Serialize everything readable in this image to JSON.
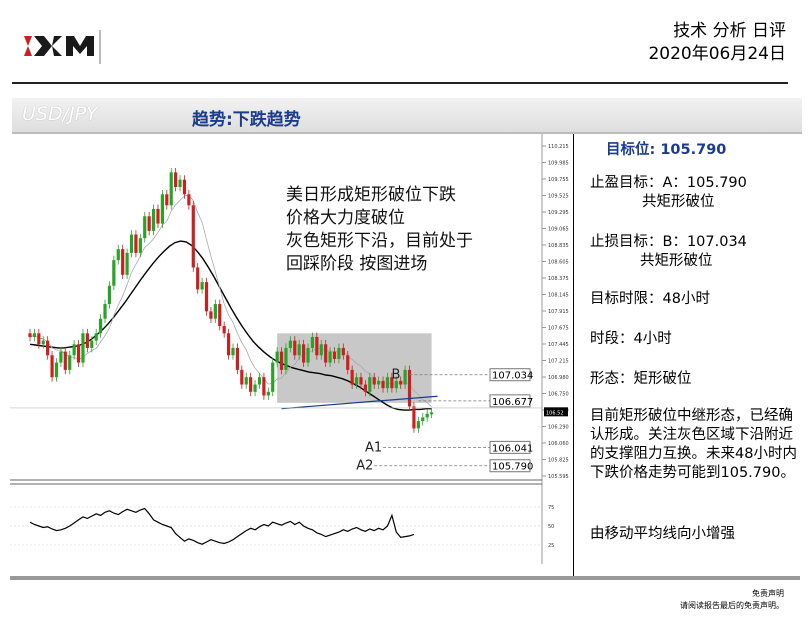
{
  "header": {
    "title": "技术 分析 日评",
    "date": "2020年06月24日"
  },
  "band": {
    "pair": "USD/JPY",
    "trend": "趋势:下跌趋势"
  },
  "colors": {
    "bull": "#27a327",
    "bear": "#cc2020",
    "brand_blue": "#1b3c8c",
    "rect": "#c8c8c8"
  },
  "sidebar": {
    "target": "目标位: 105.790",
    "tp_label": "止盈目标：A：105.790",
    "tp_sub": "共矩形破位",
    "sl_label": "止损目标：B：107.034",
    "sl_sub": "共矩形破位",
    "time_limit": "目标时限：48小时",
    "period": "时段：4小时",
    "pattern": "形态：矩形破位",
    "comment": "目前矩形破位中继形态，已经确认形成。关注灰色区域下沿附近的支撑阻力互换。未来48小时内下跌价格走势可能到105.790。",
    "note": "由移动平均线向小增强"
  },
  "chart_data": {
    "type": "candlestick",
    "annotation": [
      "美日形成矩形破位下跌",
      "价格大力度破位",
      "灰色矩形下沿，目前处于",
      "回踩阶段 按图进场"
    ],
    "y_ticks": [
      "110.215",
      "109.985",
      "109.755",
      "109.525",
      "109.295",
      "109.065",
      "108.835",
      "108.605",
      "108.375",
      "108.145",
      "107.915",
      "107.675",
      "107.445",
      "107.215",
      "106.980",
      "106.750",
      "106.520",
      "106.290",
      "106.060",
      "105.825",
      "105.595"
    ],
    "ylim": [
      105.595,
      110.215
    ],
    "levels": [
      {
        "label": "B",
        "price": 107.034,
        "tag": "107.034"
      },
      {
        "label": "",
        "price": 106.677,
        "tag": "106.677"
      },
      {
        "label": "A1",
        "price": 106.041,
        "tag": "106.041"
      },
      {
        "label": "A2",
        "price": 105.79,
        "tag": "105.790"
      }
    ],
    "current_price": "106.52",
    "rectangle": {
      "top": 107.6,
      "bottom": 106.65
    },
    "osc_ticks": [
      "75",
      "50",
      "25"
    ],
    "closes": [
      107.55,
      107.6,
      107.45,
      107.5,
      107.3,
      107.0,
      107.2,
      107.35,
      107.1,
      107.3,
      107.45,
      107.2,
      107.6,
      107.4,
      107.5,
      107.6,
      107.8,
      108.0,
      108.25,
      108.6,
      108.75,
      108.4,
      108.7,
      108.95,
      108.7,
      108.9,
      109.2,
      109.0,
      109.3,
      109.1,
      109.5,
      109.35,
      109.8,
      109.6,
      109.7,
      109.5,
      109.35,
      108.5,
      108.2,
      108.3,
      107.9,
      107.8,
      108.0,
      107.7,
      107.6,
      107.3,
      107.4,
      107.1,
      106.9,
      107.0,
      106.8,
      106.9,
      107.0,
      106.75,
      106.8,
      107.2,
      107.35,
      107.1,
      107.4,
      107.5,
      107.3,
      107.45,
      107.2,
      107.4,
      107.55,
      107.3,
      107.45,
      107.2,
      107.35,
      107.25,
      107.4,
      107.3,
      107.1,
      106.9,
      107.0,
      106.9,
      106.8,
      107.0,
      106.9,
      106.95,
      106.85,
      107.0,
      106.85,
      106.95,
      106.9,
      107.1,
      106.6,
      106.3,
      106.4,
      106.45,
      106.5,
      106.52
    ],
    "ma_slow": [
      107.45,
      107.44,
      107.43,
      107.42,
      107.41,
      107.4,
      107.4,
      107.41,
      107.42,
      107.44,
      107.47,
      107.52,
      107.58,
      107.65,
      107.73,
      107.82,
      107.92,
      108.02,
      108.13,
      108.24,
      108.35,
      108.45,
      108.55,
      108.64,
      108.72,
      108.79,
      108.84,
      108.86,
      108.85,
      108.8,
      108.72,
      108.62,
      108.5,
      108.37,
      108.23,
      108.09,
      107.95,
      107.82,
      107.7,
      107.59,
      107.49,
      107.41,
      107.34,
      107.28,
      107.23,
      107.19,
      107.16,
      107.13,
      107.11,
      107.09,
      107.07,
      107.06,
      107.05,
      107.03,
      107.02,
      107.0,
      106.98,
      106.95,
      106.91,
      106.87,
      106.82,
      106.77,
      106.72,
      106.67,
      106.62,
      106.58,
      106.56,
      106.55,
      106.55,
      106.56,
      106.56,
      106.57,
      106.57
    ],
    "osc": [
      55,
      52,
      50,
      48,
      49,
      46,
      44,
      45,
      47,
      50,
      54,
      58,
      62,
      60,
      63,
      66,
      64,
      68,
      70,
      67,
      65,
      69,
      72,
      70,
      68,
      71,
      73,
      66,
      58,
      55,
      52,
      50,
      48,
      40,
      35,
      30,
      33,
      31,
      28,
      26,
      29,
      32,
      30,
      28,
      27,
      29,
      32,
      36,
      40,
      44,
      47,
      45,
      49,
      52,
      50,
      55,
      53,
      51,
      54,
      56,
      52,
      55,
      50,
      47,
      45,
      41,
      39,
      36,
      38,
      40,
      42,
      45,
      43,
      46,
      48,
      45,
      43,
      46,
      44,
      47,
      45,
      50,
      64,
      42,
      35,
      36,
      37,
      39
    ]
  },
  "footer": {
    "line1": "免责声明",
    "line2": "请阅读报告最后的免责声明。"
  }
}
